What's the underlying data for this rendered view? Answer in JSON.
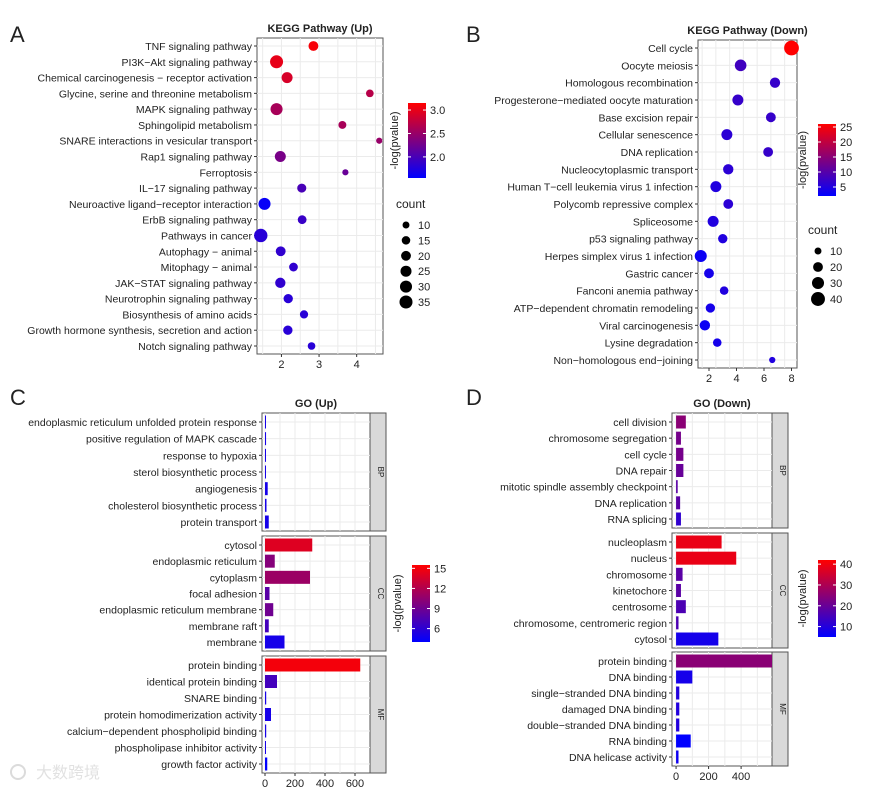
{
  "watermark": "大数跨境",
  "chart_data": [
    {
      "panel": "A",
      "type": "scatter",
      "title": "KEGG Pathway (Up)",
      "xlabel": "",
      "xlim": [
        1.35,
        4.7
      ],
      "xticks": [
        2,
        3,
        4
      ],
      "color_label": "-log10(pvalue)",
      "color_range": [
        1.55,
        3.15
      ],
      "color_ticks": [
        3.0,
        2.5,
        2.0
      ],
      "size_label": "count",
      "size_ticks": [
        10,
        15,
        20,
        25,
        30,
        35
      ],
      "categories": [
        "TNF signaling pathway",
        "PI3K−Akt signaling pathway",
        "Chemical carcinogenesis − receptor activation",
        "Glycine, serine and threonine metabolism",
        "MAPK signaling pathway",
        "Sphingolipid metabolism",
        "SNARE interactions in vesicular transport",
        "Rap1 signaling pathway",
        "Ferroptosis",
        "IL−17 signaling pathway",
        "Neuroactive ligand−receptor interaction",
        "ErbB signaling pathway",
        "Pathways in cancer",
        "Autophagy − animal",
        "Mitophagy − animal",
        "JAK−STAT signaling pathway",
        "Neurotrophin signaling pathway",
        "Biosynthesis of amino acids",
        "Growth hormone synthesis, secretion and action",
        "Notch signaling pathway"
      ],
      "x": [
        2.85,
        1.87,
        2.15,
        4.35,
        1.87,
        3.62,
        4.6,
        1.97,
        3.7,
        2.54,
        1.55,
        2.55,
        1.45,
        1.98,
        2.32,
        1.97,
        2.18,
        2.6,
        2.17,
        2.8
      ],
      "count": [
        20,
        35,
        25,
        12,
        30,
        13,
        8,
        25,
        8,
        17,
        30,
        16,
        37,
        20,
        16,
        22,
        18,
        14,
        18,
        12
      ],
      "pvalue": [
        3.1,
        3.0,
        2.9,
        2.7,
        2.6,
        2.6,
        2.5,
        2.3,
        2.2,
        2.0,
        1.6,
        1.9,
        1.8,
        1.85,
        1.85,
        1.85,
        1.8,
        1.8,
        1.8,
        1.8
      ]
    },
    {
      "panel": "B",
      "type": "scatter",
      "title": "KEGG Pathway (Down)",
      "xlabel": "",
      "xlim": [
        1.2,
        8.4
      ],
      "xticks": [
        2,
        4,
        6,
        8
      ],
      "color_label": "-log10(pvalue)",
      "color_range": [
        2,
        26
      ],
      "color_ticks": [
        25,
        20,
        15,
        10,
        5
      ],
      "size_label": "count",
      "size_ticks": [
        10,
        20,
        30,
        40
      ],
      "categories": [
        "Cell cycle",
        "Oocyte meiosis",
        "Homologous recombination",
        "Progesterone−mediated oocyte maturation",
        "Base excision repair",
        "Cellular senescence",
        "DNA replication",
        "Nucleocytoplasmic transport",
        "Human T−cell leukemia virus 1 infection",
        "Polycomb repressive complex",
        "Spliceosome",
        "p53 signaling pathway",
        "Herpes simplex virus 1 infection",
        "Gastric cancer",
        "Fanconi anemia pathway",
        "ATP−dependent chromatin remodeling",
        "Viral carcinogenesis",
        "Lysine degradation",
        "Non−homologous end−joining"
      ],
      "x": [
        8.0,
        4.3,
        6.8,
        4.1,
        6.5,
        3.3,
        6.3,
        3.4,
        2.5,
        3.4,
        2.3,
        3.0,
        1.4,
        2.0,
        3.1,
        2.1,
        1.7,
        2.6,
        6.6
      ],
      "count": [
        45,
        28,
        22,
        25,
        20,
        25,
        20,
        22,
        25,
        20,
        25,
        18,
        30,
        20,
        15,
        18,
        22,
        15,
        8
      ],
      "pvalue": [
        26,
        8,
        7,
        7,
        7,
        6,
        7,
        6,
        5,
        6,
        5,
        5,
        3,
        4,
        5,
        4,
        3,
        4,
        5
      ]
    },
    {
      "panel": "C",
      "type": "bar",
      "title": "GO (Up)",
      "xlim": [
        -20,
        700
      ],
      "xticks": [
        0,
        200,
        400,
        600
      ],
      "color_label": "-log10(pvalue)",
      "color_range": [
        4,
        15.5
      ],
      "color_ticks": [
        15,
        12,
        9,
        6
      ],
      "facets": [
        {
          "name": "BP",
          "categories": [
            "endoplasmic reticulum unfolded protein response",
            "positive regulation of MAPK cascade",
            "response to hypoxia",
            "sterol biosynthetic process",
            "angiogenesis",
            "cholesterol biosynthetic process",
            "protein transport"
          ],
          "values": [
            5,
            7,
            6,
            4,
            18,
            10,
            25
          ],
          "pvalue": [
            5,
            5,
            5,
            5,
            5,
            5,
            5
          ]
        },
        {
          "name": "CC",
          "categories": [
            "cytosol",
            "endoplasmic reticulum",
            "cytoplasm",
            "focal adhesion",
            "endoplasmic reticulum membrane",
            "membrane raft",
            "membrane"
          ],
          "values": [
            315,
            65,
            300,
            30,
            55,
            25,
            130
          ],
          "pvalue": [
            14,
            10,
            11,
            8,
            9,
            7,
            5
          ]
        },
        {
          "name": "MF",
          "categories": [
            "protein binding",
            "identical protein binding",
            "SNARE binding",
            "protein homodimerization activity",
            "calcium−dependent phospholipid binding",
            "phospholipase inhibitor activity",
            "growth factor activity"
          ],
          "values": [
            635,
            80,
            8,
            40,
            8,
            4,
            15
          ],
          "pvalue": [
            15,
            7,
            5,
            5,
            5,
            5,
            4
          ]
        }
      ]
    },
    {
      "panel": "D",
      "type": "bar",
      "title": "GO (Down)",
      "xlim": [
        -25,
        590
      ],
      "xticks": [
        0,
        200,
        400
      ],
      "color_label": "-log10(pvalue)",
      "color_range": [
        5,
        42
      ],
      "color_ticks": [
        40,
        30,
        20,
        10
      ],
      "facets": [
        {
          "name": "BP",
          "categories": [
            "cell division",
            "chromosome segregation",
            "cell cycle",
            "DNA repair",
            "mitotic spindle assembly checkpoint",
            "DNA replication",
            "RNA splicing"
          ],
          "values": [
            60,
            30,
            45,
            45,
            10,
            25,
            30
          ],
          "pvalue": [
            25,
            22,
            22,
            20,
            18,
            18,
            12
          ]
        },
        {
          "name": "CC",
          "categories": [
            "nucleoplasm",
            "nucleus",
            "chromosome",
            "kinetochore",
            "centrosome",
            "chromosome, centromeric region",
            "cytosol"
          ],
          "values": [
            280,
            370,
            40,
            30,
            60,
            15,
            260
          ],
          "pvalue": [
            39,
            39,
            18,
            18,
            16,
            16,
            8
          ]
        },
        {
          "name": "MF",
          "categories": [
            "protein binding",
            "DNA binding",
            "single−stranded DNA binding",
            "damaged DNA binding",
            "double−stranded DNA binding",
            "RNA binding",
            "DNA helicase activity"
          ],
          "values": [
            590,
            100,
            20,
            20,
            20,
            90,
            15
          ],
          "pvalue": [
            25,
            8,
            10,
            10,
            10,
            5,
            7
          ]
        }
      ]
    }
  ]
}
